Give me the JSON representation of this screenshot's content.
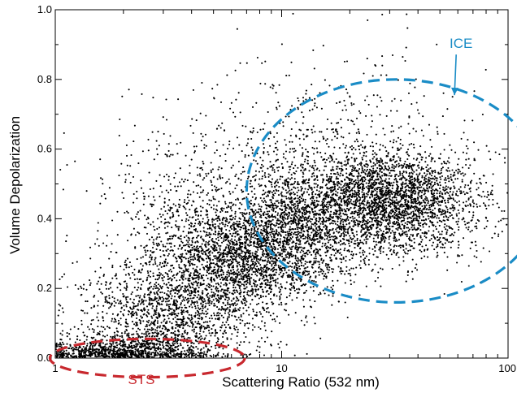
{
  "chart_data": {
    "type": "scatter",
    "title": "",
    "xlabel": "Scattering Ratio (532 nm)",
    "ylabel": "Volume Depolarization",
    "x_scale": "log",
    "xlim": [
      1,
      100
    ],
    "ylim": [
      0,
      1.0
    ],
    "x_ticks": [
      {
        "value": 1,
        "label": "1"
      },
      {
        "value": 10,
        "label": "10"
      },
      {
        "value": 100,
        "label": "100"
      }
    ],
    "y_ticks": [
      {
        "value": 0.0,
        "label": "0.0"
      },
      {
        "value": 0.2,
        "label": "0.2"
      },
      {
        "value": 0.4,
        "label": "0.4"
      },
      {
        "value": 0.6,
        "label": "0.6"
      },
      {
        "value": 0.8,
        "label": "0.8"
      },
      {
        "value": 1.0,
        "label": "1.0"
      }
    ],
    "grid": false,
    "point_color": "#000000",
    "point_groups": [
      {
        "x_center": 2.0,
        "y_center": 0.02,
        "x_spread_decades": 0.18,
        "y_spread": 0.02,
        "count": 900
      },
      {
        "x_center": 3.2,
        "y_center": 0.12,
        "x_spread_decades": 0.2,
        "y_spread": 0.07,
        "count": 1200
      },
      {
        "x_center": 6.0,
        "y_center": 0.28,
        "x_spread_decades": 0.18,
        "y_spread": 0.08,
        "count": 1700
      },
      {
        "x_center": 12.0,
        "y_center": 0.37,
        "x_spread_decades": 0.15,
        "y_spread": 0.08,
        "count": 1400
      },
      {
        "x_center": 30.0,
        "y_center": 0.45,
        "x_spread_decades": 0.2,
        "y_spread": 0.07,
        "count": 2600
      },
      {
        "x_center": 15.0,
        "y_center": 0.55,
        "x_spread_decades": 0.35,
        "y_spread": 0.15,
        "count": 900
      },
      {
        "x_center": 4.0,
        "y_center": 0.35,
        "x_spread_decades": 0.25,
        "y_spread": 0.15,
        "count": 700
      }
    ],
    "annotations": [
      {
        "label": "ICE",
        "color": "#1a8cc6",
        "shape": "dashed-ellipse",
        "x_center": 32,
        "y_center": 0.48,
        "x_radius_decades": 0.66,
        "y_radius": 0.32,
        "label_at": {
          "x": 62,
          "y": 0.89
        },
        "arrow_to": {
          "x": 58,
          "y": 0.755
        }
      },
      {
        "label": "STS",
        "color": "#c8282e",
        "shape": "dashed-ellipse",
        "x_center": 2.55,
        "y_center": 0.0,
        "x_radius_decades": 0.43,
        "y_radius": 0.055,
        "label_at": {
          "x": 2.4,
          "y": -0.075
        }
      }
    ]
  }
}
